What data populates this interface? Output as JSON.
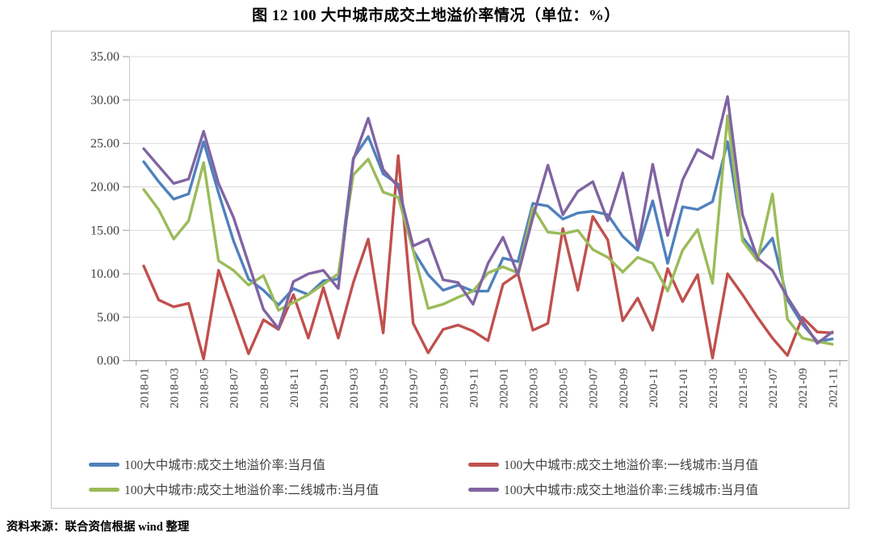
{
  "page": {
    "title": "图 12  100 大中城市成交土地溢价率情况（单位：%）",
    "source": "资料来源：联合资信根据 wind 整理"
  },
  "chart_data": {
    "type": "line",
    "title": "图 12  100 大中城市成交土地溢价率情况",
    "unit": "%",
    "ylim": [
      0,
      35
    ],
    "ytick_step": 5,
    "ytick_format": "two-decimals",
    "grid": true,
    "legend_position": "bottom",
    "x_label_every": 2,
    "categories": [
      "2018-01",
      "2018-02",
      "2018-03",
      "2018-04",
      "2018-05",
      "2018-06",
      "2018-07",
      "2018-08",
      "2018-09",
      "2018-10",
      "2018-11",
      "2018-12",
      "2019-01",
      "2019-02",
      "2019-03",
      "2019-04",
      "2019-05",
      "2019-06",
      "2019-07",
      "2019-08",
      "2019-09",
      "2019-10",
      "2019-11",
      "2019-12",
      "2020-01",
      "2020-02",
      "2020-03",
      "2020-04",
      "2020-05",
      "2020-06",
      "2020-07",
      "2020-08",
      "2020-09",
      "2020-10",
      "2020-11",
      "2020-12",
      "2021-01",
      "2021-02",
      "2021-03",
      "2021-04",
      "2021-05",
      "2021-06",
      "2021-07",
      "2021-08",
      "2021-09",
      "2021-10",
      "2021-11"
    ],
    "series": [
      {
        "name": "100大中城市:成交土地溢价率:当月值",
        "color": "#4F81BD",
        "values": [
          22.9,
          20.6,
          18.6,
          19.2,
          25.2,
          19.3,
          13.8,
          9.4,
          8.1,
          6.4,
          8.3,
          7.6,
          9.2,
          9.4,
          23.3,
          25.8,
          21.5,
          20.3,
          12.7,
          9.9,
          8.1,
          8.7,
          8.0,
          8.0,
          11.8,
          11.4,
          18.1,
          17.8,
          16.3,
          17.0,
          17.2,
          16.8,
          14.3,
          12.7,
          18.4,
          11.2,
          17.7,
          17.4,
          18.3,
          25.2,
          14.2,
          12.0,
          14.1,
          7.0,
          4.2,
          2.2,
          2.5
        ]
      },
      {
        "name": "100大中城市:成交土地溢价率:一线城市:当月值",
        "color": "#C0504D",
        "values": [
          10.9,
          7.0,
          6.2,
          6.6,
          0.2,
          10.4,
          5.7,
          0.8,
          4.7,
          3.6,
          7.6,
          2.6,
          8.4,
          2.6,
          9.0,
          14.0,
          3.2,
          23.6,
          4.3,
          0.9,
          3.6,
          4.1,
          3.4,
          2.3,
          8.8,
          10.0,
          3.5,
          4.3,
          15.2,
          8.1,
          16.6,
          13.9,
          4.6,
          7.2,
          3.5,
          10.6,
          6.8,
          9.9,
          0.3,
          10.0,
          7.6,
          5.0,
          2.6,
          0.6,
          5.0,
          3.3,
          3.2
        ]
      },
      {
        "name": "100大中城市:成交土地溢价率:二线城市:当月值",
        "color": "#9BBB59",
        "values": [
          19.7,
          17.4,
          14.0,
          16.1,
          22.8,
          11.5,
          10.4,
          8.7,
          9.8,
          5.8,
          6.7,
          7.6,
          8.8,
          10.0,
          21.4,
          23.2,
          19.4,
          18.8,
          12.7,
          6.0,
          6.5,
          7.3,
          8.0,
          10.1,
          10.8,
          10.1,
          17.6,
          14.8,
          14.6,
          15.0,
          12.8,
          11.9,
          10.2,
          11.9,
          11.2,
          8.0,
          12.7,
          15.1,
          8.9,
          28.2,
          13.8,
          11.5,
          19.2,
          4.8,
          2.6,
          2.2,
          1.9
        ]
      },
      {
        "name": "100大中城市:成交土地溢价率:三线城市:当月值",
        "color": "#8064A2",
        "values": [
          24.4,
          22.4,
          20.4,
          20.9,
          26.4,
          20.4,
          16.5,
          11.2,
          5.9,
          3.7,
          9.1,
          10.0,
          10.4,
          8.3,
          23.1,
          27.9,
          22.0,
          20.0,
          13.2,
          14.0,
          9.3,
          9.0,
          6.5,
          11.2,
          14.2,
          9.9,
          16.5,
          22.5,
          16.8,
          19.5,
          20.6,
          16.1,
          21.6,
          13.0,
          22.6,
          14.4,
          20.8,
          24.3,
          23.3,
          30.4,
          16.8,
          11.8,
          10.4,
          7.3,
          4.6,
          2.0,
          3.3
        ]
      }
    ]
  }
}
